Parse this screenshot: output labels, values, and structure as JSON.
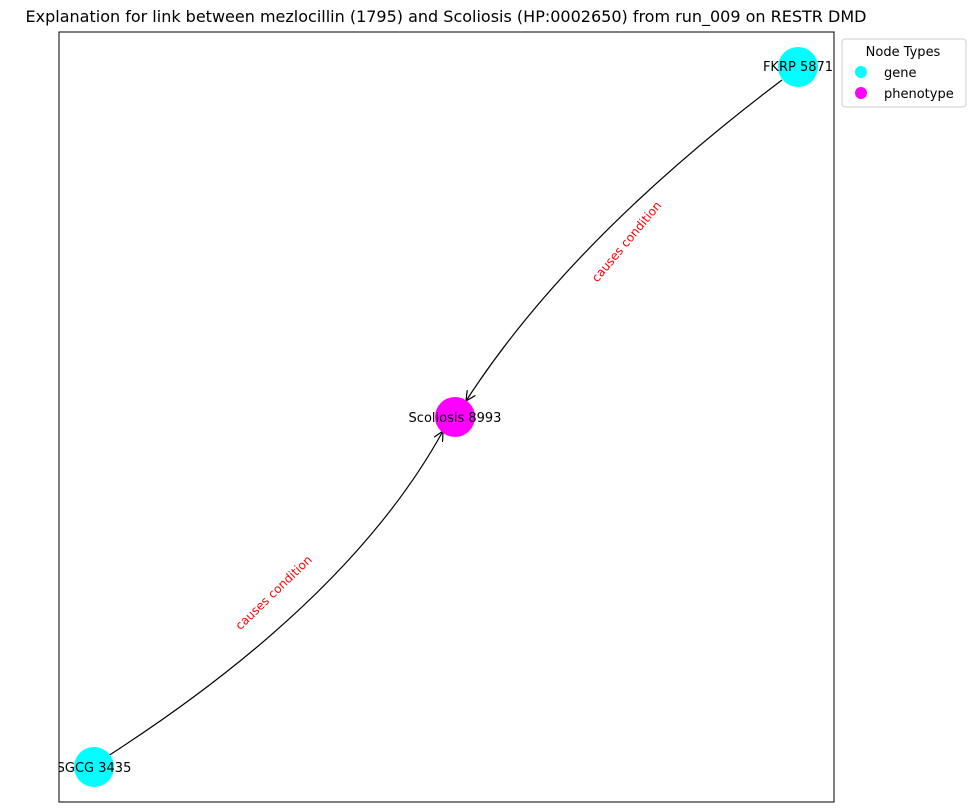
{
  "title": "Explanation for link between mezlocillin (1795) and Scoliosis (HP:0002650) from run_009 on RESTR DMD",
  "legend": {
    "title": "Node Types",
    "entries": [
      {
        "label": "gene",
        "color": "#00ffff"
      },
      {
        "label": "phenotype",
        "color": "#ff00ff"
      }
    ]
  },
  "nodes": [
    {
      "id": "fkrp",
      "label": "FKRP 5871",
      "type": "gene",
      "color": "#00ffff"
    },
    {
      "id": "scoliosis",
      "label": "Scoliosis 8993",
      "type": "phenotype",
      "color": "#ff00ff"
    },
    {
      "id": "sgcg",
      "label": "SGCG 3435",
      "type": "gene",
      "color": "#00ffff"
    }
  ],
  "edges": [
    {
      "from": "fkrp",
      "to": "scoliosis",
      "label": "causes condition",
      "edge_color": "#000000",
      "label_color": "#ff0000"
    },
    {
      "from": "sgcg",
      "to": "scoliosis",
      "label": "causes condition",
      "edge_color": "#000000",
      "label_color": "#ff0000"
    }
  ]
}
